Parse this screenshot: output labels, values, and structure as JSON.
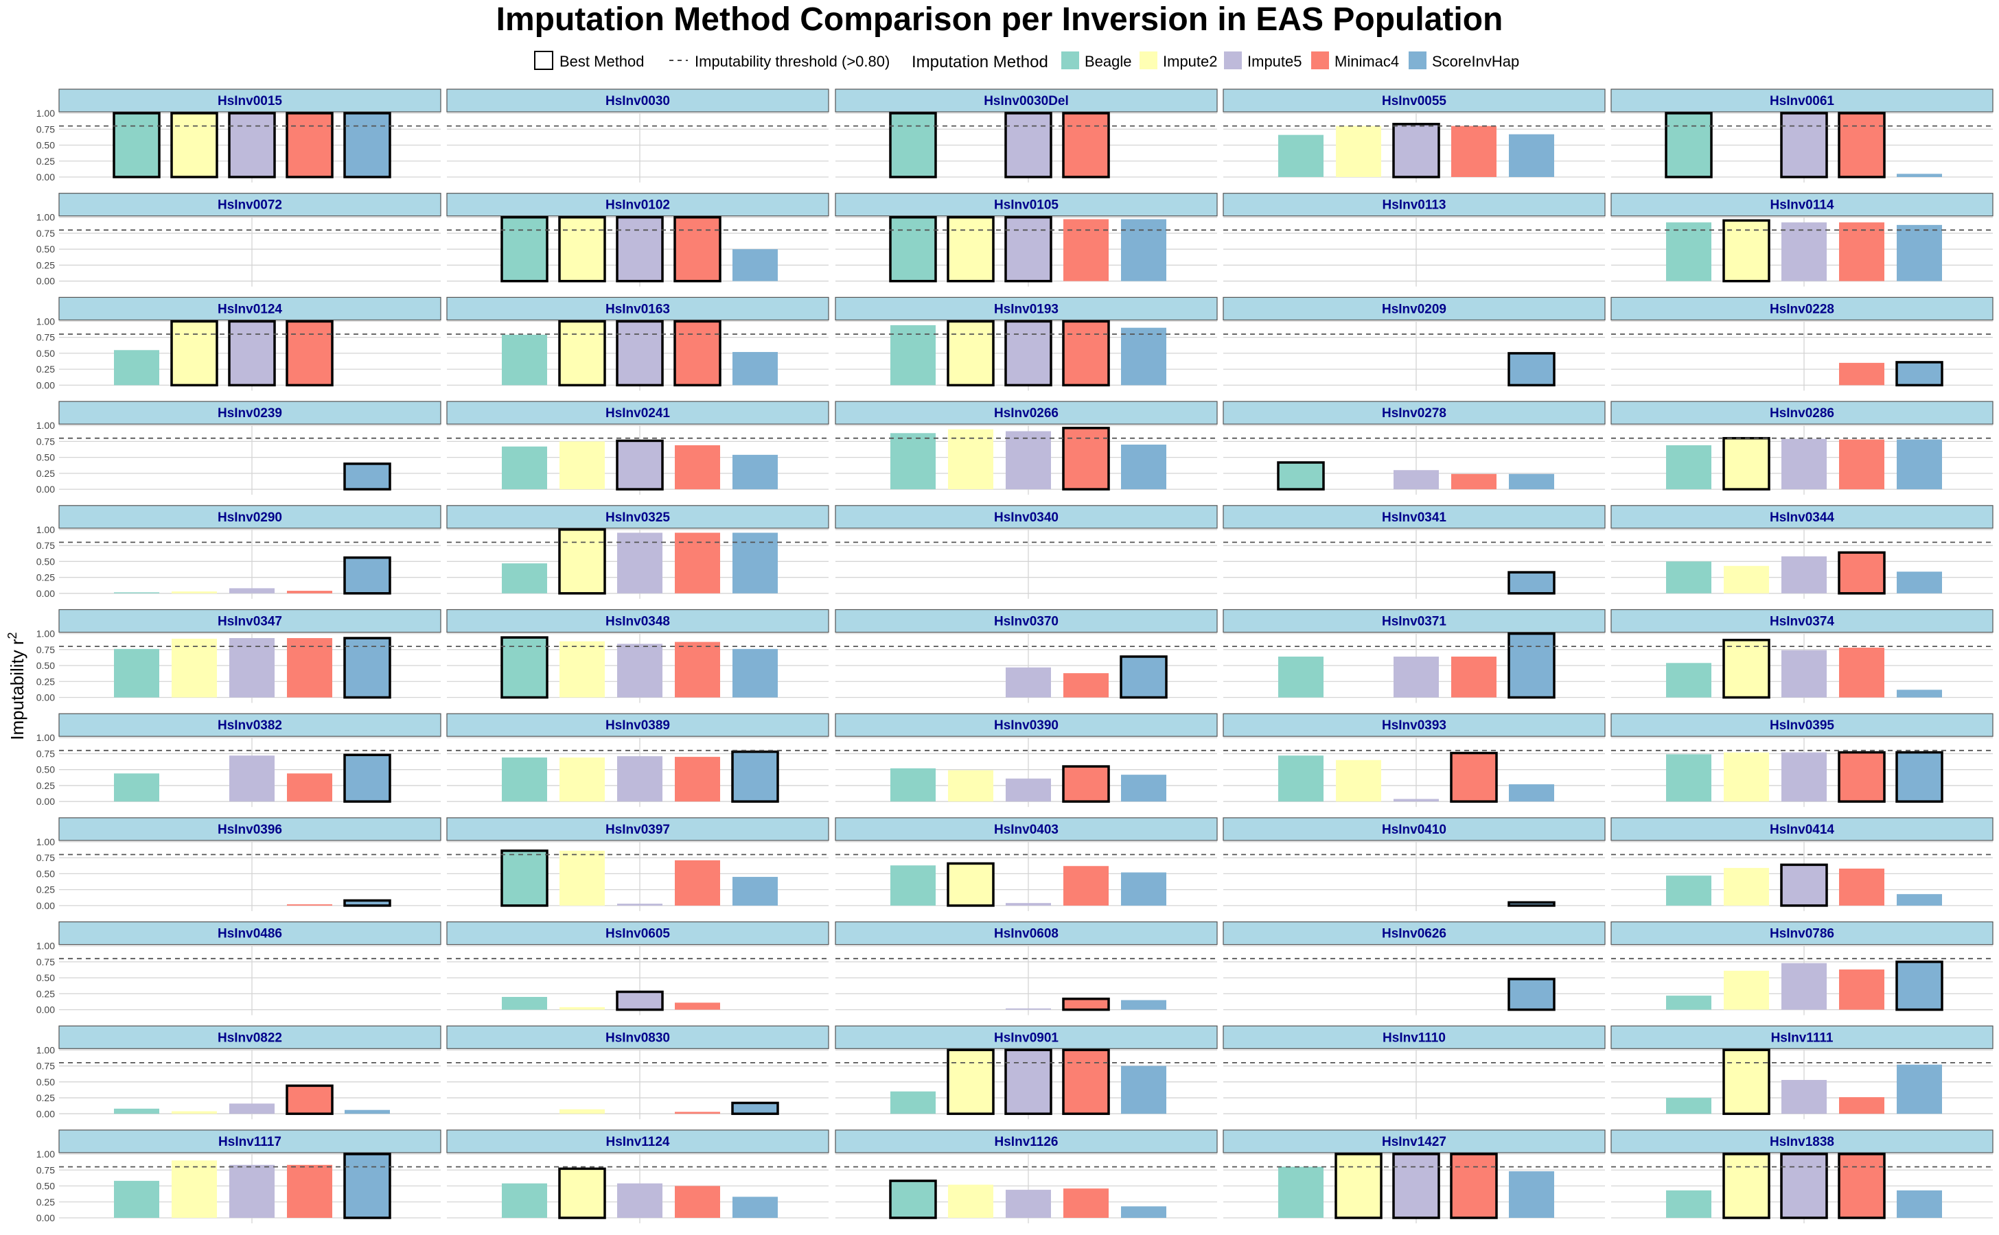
{
  "chart_data": {
    "type": "bar",
    "title": "Imputation Method Comparison per Inversion in EAS Population",
    "ylabel": "Imputability r",
    "ylabel_sup": "2",
    "ylim": [
      0,
      1
    ],
    "yticks": [
      "0.00",
      "0.25",
      "0.50",
      "0.75",
      "1.00"
    ],
    "threshold": 0.8,
    "legend": {
      "best_label": "Best Method",
      "threshold_label": "Imputability threshold (>0.80)",
      "title": "Imputation Method"
    },
    "methods": [
      "Beagle",
      "Impute2",
      "Impute5",
      "Minimac4",
      "ScoreInvHap"
    ],
    "colors": {
      "Beagle": "#8DD3C7",
      "Impute2": "#FFFFB3",
      "Impute5": "#BEBADA",
      "Minimac4": "#FB8072",
      "ScoreInvHap": "#80B1D3",
      "strip": "#ADD8E6",
      "strip_text": "#00008B"
    },
    "panels": [
      {
        "name": "HsInv0015",
        "values": [
          1,
          1,
          1,
          1,
          1
        ],
        "best": [
          0,
          1,
          2,
          3,
          4
        ]
      },
      {
        "name": "HsInv0030",
        "values": [
          null,
          null,
          null,
          null,
          null
        ],
        "best": []
      },
      {
        "name": "HsInv0030Del",
        "values": [
          1,
          null,
          1,
          1,
          null
        ],
        "best": [
          0,
          2,
          3
        ]
      },
      {
        "name": "HsInv0055",
        "values": [
          0.66,
          0.8,
          0.83,
          0.8,
          0.67
        ],
        "best": [
          2
        ]
      },
      {
        "name": "HsInv0061",
        "values": [
          1,
          null,
          1,
          1,
          0.05
        ],
        "best": [
          0,
          2,
          3
        ]
      },
      {
        "name": "HsInv0072",
        "values": [
          null,
          null,
          null,
          null,
          null
        ],
        "best": []
      },
      {
        "name": "HsInv0102",
        "values": [
          1,
          1,
          1,
          1,
          0.5
        ],
        "best": [
          0,
          1,
          2,
          3
        ]
      },
      {
        "name": "HsInv0105",
        "values": [
          1,
          1,
          1,
          0.97,
          0.97
        ],
        "best": [
          0,
          1,
          2
        ]
      },
      {
        "name": "HsInv0113",
        "values": [
          null,
          null,
          null,
          null,
          null
        ],
        "best": []
      },
      {
        "name": "HsInv0114",
        "values": [
          0.92,
          0.95,
          0.92,
          0.92,
          0.88
        ],
        "best": [
          1
        ]
      },
      {
        "name": "HsInv0124",
        "values": [
          0.55,
          1,
          1,
          1,
          null
        ],
        "best": [
          1,
          2,
          3
        ]
      },
      {
        "name": "HsInv0163",
        "values": [
          0.79,
          1,
          1,
          1,
          0.52
        ],
        "best": [
          1,
          2,
          3
        ]
      },
      {
        "name": "HsInv0193",
        "values": [
          0.94,
          1,
          1,
          1,
          0.9
        ],
        "best": [
          1,
          2,
          3
        ]
      },
      {
        "name": "HsInv0209",
        "values": [
          null,
          null,
          null,
          null,
          0.5
        ],
        "best": [
          4
        ]
      },
      {
        "name": "HsInv0228",
        "values": [
          null,
          null,
          null,
          0.35,
          0.36
        ],
        "best": [
          4
        ]
      },
      {
        "name": "HsInv0239",
        "values": [
          null,
          null,
          null,
          null,
          0.4
        ],
        "best": [
          4
        ]
      },
      {
        "name": "HsInv0241",
        "values": [
          0.67,
          0.75,
          0.76,
          0.69,
          0.54
        ],
        "best": [
          2
        ]
      },
      {
        "name": "HsInv0266",
        "values": [
          0.88,
          0.94,
          0.91,
          0.96,
          0.7
        ],
        "best": [
          3
        ]
      },
      {
        "name": "HsInv0278",
        "values": [
          0.42,
          null,
          0.3,
          0.24,
          0.24
        ],
        "best": [
          0
        ]
      },
      {
        "name": "HsInv0286",
        "values": [
          0.69,
          0.8,
          0.79,
          0.78,
          0.78
        ],
        "best": [
          1
        ]
      },
      {
        "name": "HsInv0290",
        "values": [
          0.01,
          0.03,
          0.08,
          0.04,
          0.56
        ],
        "best": [
          4
        ]
      },
      {
        "name": "HsInv0325",
        "values": [
          0.47,
          1,
          0.95,
          0.95,
          0.95
        ],
        "best": [
          1
        ]
      },
      {
        "name": "HsInv0340",
        "values": [
          null,
          null,
          null,
          null,
          null
        ],
        "best": []
      },
      {
        "name": "HsInv0341",
        "values": [
          null,
          null,
          null,
          null,
          0.33
        ],
        "best": [
          4
        ]
      },
      {
        "name": "HsInv0344",
        "values": [
          0.5,
          0.43,
          0.58,
          0.64,
          0.34
        ],
        "best": [
          3
        ]
      },
      {
        "name": "HsInv0347",
        "values": [
          0.76,
          0.92,
          0.93,
          0.93,
          0.93
        ],
        "best": [
          4
        ]
      },
      {
        "name": "HsInv0348",
        "values": [
          0.94,
          0.88,
          0.84,
          0.87,
          0.76
        ],
        "best": [
          0
        ]
      },
      {
        "name": "HsInv0370",
        "values": [
          null,
          null,
          0.47,
          0.38,
          0.64
        ],
        "best": [
          4
        ]
      },
      {
        "name": "HsInv0371",
        "values": [
          0.64,
          null,
          0.64,
          0.64,
          1
        ],
        "best": [
          4
        ]
      },
      {
        "name": "HsInv0374",
        "values": [
          0.54,
          0.9,
          0.74,
          0.78,
          0.12
        ],
        "best": [
          1
        ]
      },
      {
        "name": "HsInv0382",
        "values": [
          0.44,
          null,
          0.72,
          0.44,
          0.73
        ],
        "best": [
          4
        ]
      },
      {
        "name": "HsInv0389",
        "values": [
          0.69,
          0.69,
          0.71,
          0.7,
          0.78
        ],
        "best": [
          4
        ]
      },
      {
        "name": "HsInv0390",
        "values": [
          0.52,
          0.49,
          0.36,
          0.55,
          0.42
        ],
        "best": [
          3
        ]
      },
      {
        "name": "HsInv0393",
        "values": [
          0.72,
          0.65,
          0.04,
          0.76,
          0.27
        ],
        "best": [
          3
        ]
      },
      {
        "name": "HsInv0395",
        "values": [
          0.74,
          0.77,
          0.77,
          0.77,
          0.77
        ],
        "best": [
          3,
          4
        ]
      },
      {
        "name": "HsInv0396",
        "values": [
          null,
          null,
          null,
          0.02,
          0.08
        ],
        "best": [
          4
        ]
      },
      {
        "name": "HsInv0397",
        "values": [
          0.86,
          0.86,
          0.03,
          0.71,
          0.45
        ],
        "best": [
          0
        ]
      },
      {
        "name": "HsInv0403",
        "values": [
          0.63,
          0.66,
          0.04,
          0.62,
          0.52
        ],
        "best": [
          1
        ]
      },
      {
        "name": "HsInv0410",
        "values": [
          null,
          null,
          null,
          null,
          0.05
        ],
        "best": [
          4
        ]
      },
      {
        "name": "HsInv0414",
        "values": [
          0.47,
          0.59,
          0.64,
          0.58,
          0.18
        ],
        "best": [
          2
        ]
      },
      {
        "name": "HsInv0486",
        "values": [
          null,
          null,
          null,
          null,
          null
        ],
        "best": []
      },
      {
        "name": "HsInv0605",
        "values": [
          0.2,
          0.04,
          0.28,
          0.11,
          null
        ],
        "best": [
          2
        ]
      },
      {
        "name": "HsInv0608",
        "values": [
          null,
          null,
          0.02,
          0.17,
          0.15
        ],
        "best": [
          3
        ]
      },
      {
        "name": "HsInv0626",
        "values": [
          null,
          null,
          null,
          null,
          0.48
        ],
        "best": [
          4
        ]
      },
      {
        "name": "HsInv0786",
        "values": [
          0.22,
          0.61,
          0.73,
          0.63,
          0.75
        ],
        "best": [
          4
        ]
      },
      {
        "name": "HsInv0822",
        "values": [
          0.08,
          0.04,
          0.16,
          0.44,
          0.06
        ],
        "best": [
          3
        ]
      },
      {
        "name": "HsInv0830",
        "values": [
          null,
          0.07,
          null,
          0.03,
          0.17
        ],
        "best": [
          4
        ]
      },
      {
        "name": "HsInv0901",
        "values": [
          0.35,
          1,
          1,
          1,
          0.75
        ],
        "best": [
          1,
          2,
          3
        ]
      },
      {
        "name": "HsInv1110",
        "values": [
          null,
          null,
          null,
          null,
          null
        ],
        "best": []
      },
      {
        "name": "HsInv1111",
        "values": [
          0.25,
          1,
          0.53,
          0.26,
          0.77
        ],
        "best": [
          1
        ]
      },
      {
        "name": "HsInv1117",
        "values": [
          0.58,
          0.9,
          0.83,
          0.83,
          1
        ],
        "best": [
          4
        ]
      },
      {
        "name": "HsInv1124",
        "values": [
          0.54,
          0.77,
          0.54,
          0.5,
          0.33
        ],
        "best": [
          1
        ]
      },
      {
        "name": "HsInv1126",
        "values": [
          0.58,
          0.52,
          0.44,
          0.46,
          0.18
        ],
        "best": [
          0
        ]
      },
      {
        "name": "HsInv1427",
        "values": [
          0.8,
          1,
          1,
          1,
          0.73
        ],
        "best": [
          1,
          2,
          3
        ]
      },
      {
        "name": "HsInv1838",
        "values": [
          0.43,
          1,
          1,
          1,
          0.43
        ],
        "best": [
          1,
          2,
          3
        ]
      }
    ]
  }
}
